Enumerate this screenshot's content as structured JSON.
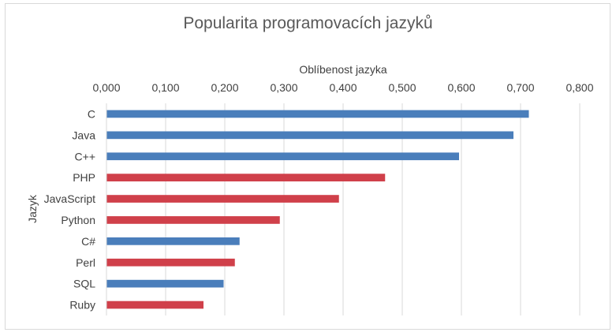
{
  "chart_data": {
    "type": "bar",
    "orientation": "horizontal",
    "title": "Popularita programovacích jazyků",
    "xlabel": "Oblíbenost jazyka",
    "ylabel": "Jazyk",
    "xlim": [
      0,
      0.8
    ],
    "x_ticks": [
      "0,000",
      "0,100",
      "0,200",
      "0,300",
      "0,400",
      "0,500",
      "0,600",
      "0,700",
      "0,800"
    ],
    "x_axis_position": "top",
    "grid": "vertical",
    "legend": "none",
    "colors": {
      "blue": "#4a7ebb",
      "red": "#d0404a"
    },
    "categories": [
      "C",
      "Java",
      "C++",
      "PHP",
      "JavaScript",
      "Python",
      "C#",
      "Perl",
      "SQL",
      "Ruby"
    ],
    "values": [
      0.714,
      0.688,
      0.596,
      0.471,
      0.393,
      0.293,
      0.225,
      0.217,
      0.198,
      0.164
    ],
    "bar_colors": [
      "blue",
      "blue",
      "blue",
      "red",
      "red",
      "red",
      "blue",
      "red",
      "blue",
      "red"
    ]
  }
}
